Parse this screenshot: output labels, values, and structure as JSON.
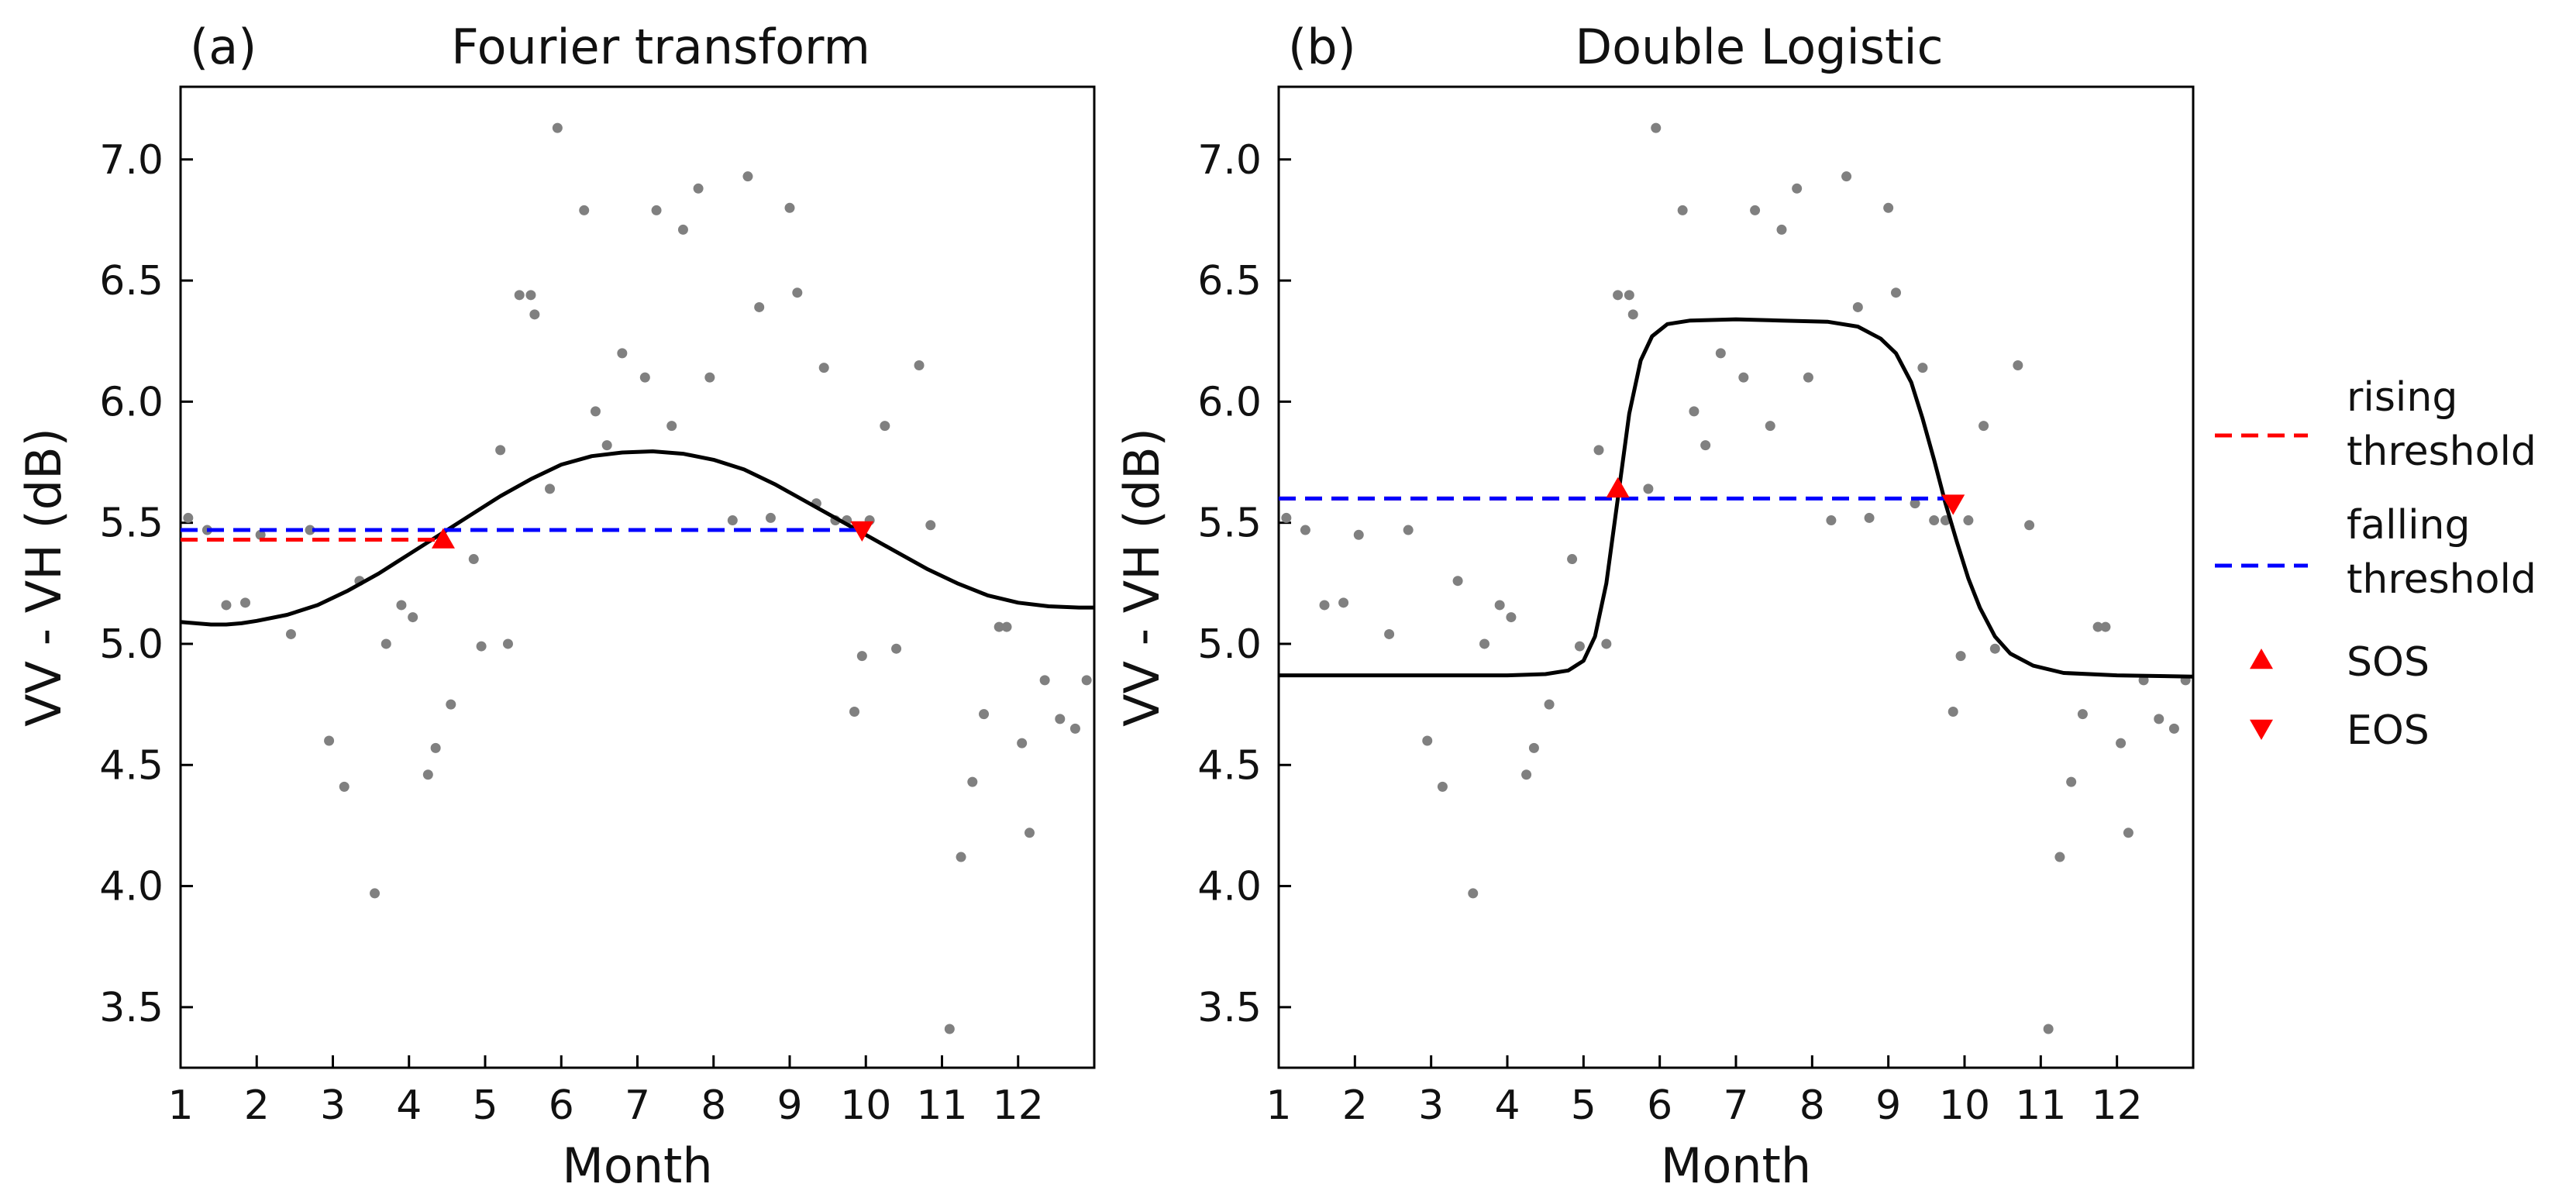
{
  "chart_data": [
    {
      "type": "scatter",
      "panel_label": "(a)",
      "title": "Fourier transform",
      "xlabel": "Month",
      "ylabel": "VV - VH (dB)",
      "xlim": [
        1,
        13
      ],
      "ylim": [
        3.25,
        7.3
      ],
      "xticks": [
        1,
        2,
        3,
        4,
        5,
        6,
        7,
        8,
        9,
        10,
        11,
        12
      ],
      "xtick_labels": [
        "1",
        "2",
        "3",
        "4",
        "5",
        "6",
        "7",
        "8",
        "9",
        "10",
        "11",
        "12"
      ],
      "yticks": [
        3.5,
        4.0,
        4.5,
        5.0,
        5.5,
        6.0,
        6.5,
        7.0
      ],
      "ytick_labels": [
        "3.5",
        "4.0",
        "4.5",
        "5.0",
        "5.5",
        "6.0",
        "6.5",
        "7.0"
      ],
      "fit_curve": {
        "name": "Fourier fit",
        "color": "#000000",
        "x": [
          1.0,
          1.2,
          1.4,
          1.6,
          1.8,
          2.0,
          2.4,
          2.8,
          3.2,
          3.6,
          4.0,
          4.4,
          4.8,
          5.2,
          5.6,
          6.0,
          6.4,
          6.8,
          7.2,
          7.6,
          8.0,
          8.4,
          8.8,
          9.2,
          9.6,
          10.0,
          10.4,
          10.8,
          11.2,
          11.6,
          12.0,
          12.4,
          12.8,
          13.0
        ],
        "y": [
          5.09,
          5.085,
          5.08,
          5.08,
          5.085,
          5.095,
          5.12,
          5.16,
          5.22,
          5.29,
          5.37,
          5.45,
          5.53,
          5.61,
          5.68,
          5.74,
          5.775,
          5.79,
          5.795,
          5.785,
          5.76,
          5.72,
          5.66,
          5.59,
          5.52,
          5.45,
          5.38,
          5.31,
          5.25,
          5.2,
          5.17,
          5.155,
          5.15,
          5.15
        ]
      },
      "rising_threshold": {
        "name": "rising threshold",
        "value": 5.43,
        "x_start": 1.0,
        "x_end": 4.45,
        "color": "#ff0000"
      },
      "falling_threshold": {
        "name": "falling threshold",
        "value": 5.47,
        "x_start": 1.0,
        "x_end": 9.95,
        "color": "#0000ff"
      },
      "sos": {
        "name": "SOS",
        "x": 4.45,
        "y": 5.43,
        "color": "#ff0000"
      },
      "eos": {
        "name": "EOS",
        "x": 9.95,
        "y": 5.47,
        "color": "#ff0000"
      },
      "points": {
        "name": "observations",
        "color": "#808080",
        "x": [
          1.1,
          1.35,
          1.6,
          1.85,
          2.05,
          2.45,
          2.7,
          2.95,
          3.15,
          3.35,
          3.55,
          3.7,
          3.9,
          4.05,
          4.25,
          4.35,
          4.55,
          4.85,
          4.95,
          5.2,
          5.3,
          5.45,
          5.6,
          5.65,
          5.85,
          5.95,
          6.3,
          6.45,
          6.6,
          6.8,
          7.1,
          7.25,
          7.45,
          7.6,
          7.8,
          7.95,
          8.25,
          8.45,
          8.6,
          8.75,
          9.0,
          9.1,
          9.35,
          9.45,
          9.6,
          9.75,
          9.85,
          9.95,
          10.05,
          10.25,
          10.4,
          10.7,
          10.85,
          11.1,
          11.25,
          11.4,
          11.55,
          11.75,
          11.85,
          12.05,
          12.15,
          12.35,
          12.55,
          12.75,
          12.9
        ],
        "y": [
          5.52,
          5.47,
          5.16,
          5.17,
          5.45,
          5.04,
          5.47,
          4.6,
          4.41,
          5.26,
          3.97,
          5.0,
          5.16,
          5.11,
          4.46,
          4.57,
          4.75,
          5.35,
          4.99,
          5.8,
          5.0,
          6.44,
          6.44,
          6.36,
          5.64,
          7.13,
          6.79,
          5.96,
          5.82,
          6.2,
          6.1,
          6.79,
          5.9,
          6.71,
          6.88,
          6.1,
          5.51,
          6.93,
          6.39,
          5.52,
          6.8,
          6.45,
          5.58,
          6.14,
          5.51,
          5.51,
          4.72,
          4.95,
          5.51,
          5.9,
          4.98,
          6.15,
          5.49,
          3.41,
          4.12,
          4.43,
          4.71,
          5.07,
          5.07,
          4.59,
          4.22,
          4.85,
          4.69,
          4.65,
          4.85
        ]
      }
    },
    {
      "type": "scatter",
      "panel_label": "(b)",
      "title": "Double Logistic",
      "xlabel": "Month",
      "ylabel": "VV - VH (dB)",
      "xlim": [
        1,
        13
      ],
      "ylim": [
        3.25,
        7.3
      ],
      "xticks": [
        1,
        2,
        3,
        4,
        5,
        6,
        7,
        8,
        9,
        10,
        11,
        12
      ],
      "xtick_labels": [
        "1",
        "2",
        "3",
        "4",
        "5",
        "6",
        "7",
        "8",
        "9",
        "10",
        "11",
        "12"
      ],
      "yticks": [
        3.5,
        4.0,
        4.5,
        5.0,
        5.5,
        6.0,
        6.5,
        7.0
      ],
      "ytick_labels": [
        "3.5",
        "4.0",
        "4.5",
        "5.0",
        "5.5",
        "6.0",
        "6.5",
        "7.0"
      ],
      "fit_curve": {
        "name": "Double logistic fit",
        "color": "#000000",
        "x": [
          1.0,
          2.0,
          3.0,
          4.0,
          4.5,
          4.8,
          5.0,
          5.15,
          5.3,
          5.45,
          5.6,
          5.75,
          5.9,
          6.1,
          6.4,
          7.0,
          7.6,
          8.2,
          8.6,
          8.9,
          9.1,
          9.3,
          9.45,
          9.6,
          9.75,
          9.9,
          10.05,
          10.2,
          10.4,
          10.6,
          10.9,
          11.3,
          12.0,
          13.0
        ],
        "y": [
          4.87,
          4.87,
          4.87,
          4.87,
          4.875,
          4.89,
          4.93,
          5.03,
          5.25,
          5.6,
          5.95,
          6.17,
          6.27,
          6.32,
          6.335,
          6.34,
          6.335,
          6.33,
          6.31,
          6.26,
          6.2,
          6.08,
          5.93,
          5.76,
          5.58,
          5.42,
          5.27,
          5.15,
          5.03,
          4.96,
          4.91,
          4.88,
          4.87,
          4.865
        ]
      },
      "rising_threshold": {
        "name": "rising threshold",
        "value": 5.6,
        "x_start": 1.0,
        "x_end": 5.45,
        "color": "#ff0000"
      },
      "falling_threshold": {
        "name": "falling threshold",
        "value": 5.6,
        "x_start": 1.0,
        "x_end": 9.85,
        "color": "#0000ff"
      },
      "sos": {
        "name": "SOS",
        "x": 5.45,
        "y": 5.64,
        "color": "#ff0000"
      },
      "eos": {
        "name": "EOS",
        "x": 9.85,
        "y": 5.58,
        "color": "#ff0000"
      },
      "points": {
        "name": "observations",
        "color": "#808080",
        "x": [
          1.1,
          1.35,
          1.6,
          1.85,
          2.05,
          2.45,
          2.7,
          2.95,
          3.15,
          3.35,
          3.55,
          3.7,
          3.9,
          4.05,
          4.25,
          4.35,
          4.55,
          4.85,
          4.95,
          5.2,
          5.3,
          5.45,
          5.6,
          5.65,
          5.85,
          5.95,
          6.3,
          6.45,
          6.6,
          6.8,
          7.1,
          7.25,
          7.45,
          7.6,
          7.8,
          7.95,
          8.25,
          8.45,
          8.6,
          8.75,
          9.0,
          9.1,
          9.35,
          9.45,
          9.6,
          9.75,
          9.85,
          9.95,
          10.05,
          10.25,
          10.4,
          10.7,
          10.85,
          11.1,
          11.25,
          11.4,
          11.55,
          11.75,
          11.85,
          12.05,
          12.15,
          12.35,
          12.55,
          12.75,
          12.9
        ],
        "y": [
          5.52,
          5.47,
          5.16,
          5.17,
          5.45,
          5.04,
          5.47,
          4.6,
          4.41,
          5.26,
          3.97,
          5.0,
          5.16,
          5.11,
          4.46,
          4.57,
          4.75,
          5.35,
          4.99,
          5.8,
          5.0,
          6.44,
          6.44,
          6.36,
          5.64,
          7.13,
          6.79,
          5.96,
          5.82,
          6.2,
          6.1,
          6.79,
          5.9,
          6.71,
          6.88,
          6.1,
          5.51,
          6.93,
          6.39,
          5.52,
          6.8,
          6.45,
          5.58,
          6.14,
          5.51,
          5.51,
          4.72,
          4.95,
          5.51,
          5.9,
          4.98,
          6.15,
          5.49,
          3.41,
          4.12,
          4.43,
          4.71,
          5.07,
          5.07,
          4.59,
          4.22,
          4.85,
          4.69,
          4.65,
          4.85
        ]
      }
    }
  ],
  "legend": {
    "placement": "right",
    "items": [
      {
        "kind": "dashed-line",
        "color": "#ff0000",
        "lines": [
          "rising",
          "threshold"
        ]
      },
      {
        "kind": "dashed-line",
        "color": "#0000ff",
        "lines": [
          "falling",
          "threshold"
        ]
      },
      {
        "kind": "marker-up",
        "color": "#ff0000",
        "lines": [
          "SOS"
        ]
      },
      {
        "kind": "marker-down",
        "color": "#ff0000",
        "lines": [
          "EOS"
        ]
      }
    ]
  }
}
